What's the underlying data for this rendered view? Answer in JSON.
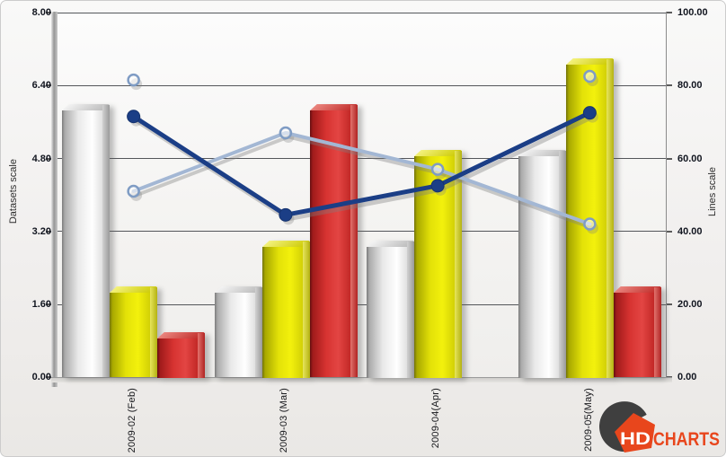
{
  "chart_data": {
    "type": "combo-bar-line",
    "categories": [
      "2009-02 (Feb)",
      "2009-03 (Mar)",
      "2009-04(Apr)",
      "2009-05(May)"
    ],
    "left_axis": {
      "title": "Datasets scale",
      "tick_labels": [
        "8.00",
        "6.40",
        "4.80",
        "3.20",
        "1.60",
        "0.00"
      ],
      "min": 0,
      "max": 8
    },
    "right_axis": {
      "title": "Lines scale",
      "tick_labels": [
        "100.00",
        "80.00",
        "60.00",
        "40.00",
        "20.00",
        "0.00"
      ],
      "min": 0,
      "max": 100
    },
    "grid": true,
    "legend": "none",
    "bar_series": [
      {
        "name": "gray-bars",
        "color": "#e9e9e9",
        "values": [
          6,
          2,
          3,
          5
        ]
      },
      {
        "name": "yellow-bars",
        "color": "#e8e60a",
        "values": [
          2,
          3,
          5,
          7
        ]
      },
      {
        "name": "red-bars",
        "color": "#d73331",
        "values": [
          1,
          6,
          0,
          2
        ]
      }
    ],
    "line_series": [
      {
        "name": "light-blue-line",
        "axis": "right",
        "color": "#a3b7d4",
        "marker": "open-circle",
        "marker_ring": "#7f9cc4",
        "stroke_width": 4,
        "values": [
          51,
          67,
          57,
          42
        ]
      },
      {
        "name": "light-blue-isolated-points",
        "axis": "right",
        "color": "#a3b7d4",
        "marker": "open-circle",
        "marker_ring": "#7f9cc4",
        "stroke_width": 4,
        "values": [
          81.5,
          null,
          null,
          82.5
        ]
      },
      {
        "name": "dark-blue-line",
        "axis": "right",
        "color": "#1b3e86",
        "marker": "filled-circle",
        "marker_ring": "#16336e",
        "stroke_width": 5,
        "values": [
          71.5,
          44.5,
          52.5,
          72.5
        ]
      }
    ]
  },
  "logo": {
    "hd": "HD",
    "charts": "CHARTS",
    "orange": "#e8461c",
    "dark": "#3f3f3f",
    "hd_text_color": "#ffffff"
  }
}
